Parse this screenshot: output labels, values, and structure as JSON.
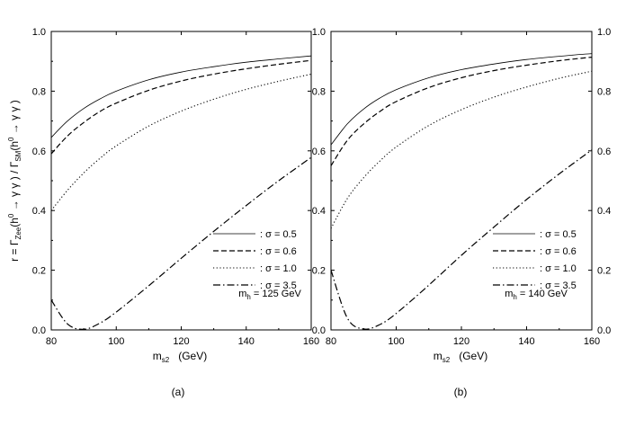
{
  "chart_data": [
    {
      "type": "line",
      "panel_label": "(a)",
      "annotation": {
        "prefix": "m",
        "sub": "h",
        "suffix": " = 125 GeV"
      },
      "xlabel": {
        "base": "m",
        "sub": "s2",
        "unit": "(GeV)"
      },
      "ylabel": {
        "head": "r = Γ",
        "sub1": "Zee",
        "mid1": "(h",
        "sup1": "0",
        "mid2": " → γ γ ) / Γ",
        "sub2": "SM",
        "mid3": "(h",
        "sup2": "0",
        "tail": " → γ γ )"
      },
      "xlim": [
        80,
        160
      ],
      "ylim": [
        0.0,
        1.0
      ],
      "xticks": [
        80,
        100,
        120,
        140,
        160
      ],
      "yticks": [
        0.0,
        0.2,
        0.4,
        0.6,
        0.8,
        1.0
      ],
      "xtick_labels": [
        "80",
        "100",
        "120",
        "140",
        "160"
      ],
      "ytick_labels": [
        "0.0",
        "0.2",
        "0.4",
        "0.6",
        "0.8",
        "1.0"
      ],
      "legend_position": "lower-right",
      "x": [
        80,
        85,
        90,
        95,
        100,
        110,
        120,
        130,
        140,
        150,
        160
      ],
      "series": [
        {
          "name": ": σ = 0.5",
          "style": "solid",
          "values": [
            0.645,
            0.7,
            0.742,
            0.774,
            0.8,
            0.838,
            0.864,
            0.882,
            0.897,
            0.908,
            0.918
          ]
        },
        {
          "name": ": σ = 0.6",
          "style": "dashed",
          "values": [
            0.59,
            0.65,
            0.695,
            0.732,
            0.76,
            0.803,
            0.834,
            0.857,
            0.875,
            0.89,
            0.903
          ]
        },
        {
          "name": ": σ = 1.0",
          "style": "dotted",
          "values": [
            0.4,
            0.468,
            0.526,
            0.575,
            0.617,
            0.683,
            0.733,
            0.773,
            0.806,
            0.833,
            0.857
          ]
        },
        {
          "name": ": σ = 3.5",
          "style": "dashdot",
          "values": [
            0.1,
            0.02,
            0.002,
            0.023,
            0.06,
            0.148,
            0.24,
            0.33,
            0.417,
            0.5,
            0.578
          ]
        }
      ]
    },
    {
      "type": "line",
      "panel_label": "(b)",
      "annotation": {
        "prefix": "m",
        "sub": "h",
        "suffix": " = 140 GeV"
      },
      "xlabel": {
        "base": "m",
        "sub": "s2",
        "unit": "(GeV)"
      },
      "xlim": [
        80,
        160
      ],
      "ylim": [
        0.0,
        1.0
      ],
      "xticks": [
        80,
        100,
        120,
        140,
        160
      ],
      "yticks": [
        0.0,
        0.2,
        0.4,
        0.6,
        0.8,
        1.0
      ],
      "xtick_labels": [
        "80",
        "100",
        "120",
        "140",
        "160"
      ],
      "ytick_labels": [
        "0.0",
        "0.2",
        "0.4",
        "0.6",
        "0.8",
        "1.0"
      ],
      "legend_position": "lower-right",
      "x": [
        80,
        85,
        90,
        95,
        100,
        110,
        120,
        130,
        140,
        150,
        160
      ],
      "series": [
        {
          "name": ": σ = 0.5",
          "style": "solid",
          "values": [
            0.62,
            0.69,
            0.74,
            0.777,
            0.805,
            0.845,
            0.872,
            0.891,
            0.906,
            0.917,
            0.926
          ]
        },
        {
          "name": ": σ = 0.6",
          "style": "dashed",
          "values": [
            0.55,
            0.635,
            0.69,
            0.732,
            0.765,
            0.812,
            0.845,
            0.869,
            0.887,
            0.902,
            0.914
          ]
        },
        {
          "name": ": σ = 1.0",
          "style": "dotted",
          "values": [
            0.34,
            0.44,
            0.51,
            0.566,
            0.613,
            0.685,
            0.738,
            0.78,
            0.814,
            0.843,
            0.867
          ]
        },
        {
          "name": ": σ = 3.5",
          "style": "dashdot",
          "values": [
            0.2,
            0.04,
            0.003,
            0.018,
            0.055,
            0.15,
            0.25,
            0.345,
            0.437,
            0.523,
            0.603
          ]
        }
      ]
    }
  ]
}
